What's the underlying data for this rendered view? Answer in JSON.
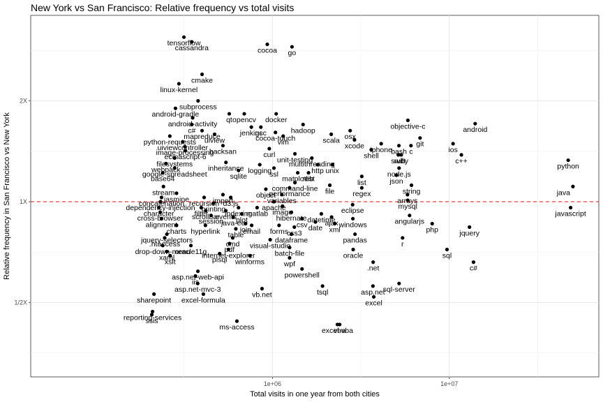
{
  "chart_data": {
    "type": "scatter",
    "title": "New York vs San Francisco: Relative frequency vs total visits",
    "xlabel": "Total visits in one year from both cities",
    "ylabel": "Relative frequency in San Francisco vs New York",
    "x_scale": "log10",
    "y_scale": "log2",
    "xlim": [
      43000,
      70000000
    ],
    "ylim": [
      0.3,
      3.6
    ],
    "x_ticks": [
      {
        "value": 1000000,
        "label": "1e+06"
      },
      {
        "value": 10000000,
        "label": "1e+07"
      }
    ],
    "y_ticks": [
      {
        "value": 0.5,
        "label": "1/2X"
      },
      {
        "value": 1,
        "label": "1X"
      },
      {
        "value": 2,
        "label": "2X"
      }
    ],
    "reference_line": {
      "y": 1,
      "color": "#e8413c",
      "style": "dashed"
    },
    "grid": true,
    "point_color": "#000000",
    "labeled_points": [
      {
        "label": "tensorflow",
        "x": 316000,
        "y": 3.1
      },
      {
        "label": "cassandra",
        "x": 350000,
        "y": 3.0
      },
      {
        "label": "cocoa",
        "x": 935000,
        "y": 2.95
      },
      {
        "label": "go",
        "x": 1290000,
        "y": 2.9
      },
      {
        "label": "cmake",
        "x": 400000,
        "y": 2.4
      },
      {
        "label": "linux-kernel",
        "x": 296000,
        "y": 2.25
      },
      {
        "label": "subprocess",
        "x": 380000,
        "y": 2.0
      },
      {
        "label": "android-gradle",
        "x": 283000,
        "y": 1.9
      },
      {
        "label": "qt",
        "x": 570000,
        "y": 1.83
      },
      {
        "label": "opencv",
        "x": 693000,
        "y": 1.83
      },
      {
        "label": "docker",
        "x": 1050000,
        "y": 1.83
      },
      {
        "label": "android-activity",
        "x": 354000,
        "y": 1.78
      },
      {
        "label": "hadoop",
        "x": 1490000,
        "y": 1.7
      },
      {
        "label": "objective-c",
        "x": 5830000,
        "y": 1.75
      },
      {
        "label": "android",
        "x": 14000000,
        "y": 1.71
      },
      {
        "label": "c#",
        "x": 350000,
        "y": 1.7
      },
      {
        "label": "jenkins",
        "x": 760000,
        "y": 1.67
      },
      {
        "label": "gcc",
        "x": 860000,
        "y": 1.67
      },
      {
        "label": "mapreduce",
        "x": 400000,
        "y": 1.63
      },
      {
        "label": "osx",
        "x": 2750000,
        "y": 1.63
      },
      {
        "label": "cocoa-touch",
        "x": 1040000,
        "y": 1.61
      },
      {
        "label": "uiview",
        "x": 471000,
        "y": 1.59
      },
      {
        "label": "scala",
        "x": 2150000,
        "y": 1.59
      },
      {
        "label": "vim",
        "x": 1150000,
        "y": 1.57
      },
      {
        "label": "python-requests",
        "x": 263000,
        "y": 1.57
      },
      {
        "label": "xcode",
        "x": 2910000,
        "y": 1.53
      },
      {
        "label": "git",
        "x": 6830000,
        "y": 1.55
      },
      {
        "label": "uiviewcontroller",
        "x": 311000,
        "y": 1.51
      },
      {
        "label": "iphone",
        "x": 4120000,
        "y": 1.49
      },
      {
        "label": "ios",
        "x": 10500000,
        "y": 1.49
      },
      {
        "label": "backsan",
        "x": 525000,
        "y": 1.47
      },
      {
        "label": "bash",
        "x": 5190000,
        "y": 1.47
      },
      {
        "label": "c",
        "x": 6070000,
        "y": 1.47
      },
      {
        "label": "image-processing",
        "x": 320000,
        "y": 1.46
      },
      {
        "label": "curl",
        "x": 960000,
        "y": 1.44
      },
      {
        "label": "shell",
        "x": 3620000,
        "y": 1.43
      },
      {
        "label": "c++",
        "x": 11700000,
        "y": 1.38
      },
      {
        "label": "ecmascript-6",
        "x": 322000,
        "y": 1.42
      },
      {
        "label": "unit-testing",
        "x": 1340000,
        "y": 1.39
      },
      {
        "label": "swift",
        "x": 5150000,
        "y": 1.38
      },
      {
        "label": "ruby",
        "x": 5350000,
        "y": 1.38
      },
      {
        "label": "multithreading",
        "x": 1670000,
        "y": 1.35
      },
      {
        "label": "filesystems",
        "x": 280000,
        "y": 1.35
      },
      {
        "label": "python",
        "x": 47000000,
        "y": 1.33
      },
      {
        "label": "inheritance",
        "x": 546000,
        "y": 1.31
      },
      {
        "label": "logging",
        "x": 848000,
        "y": 1.29
      },
      {
        "label": "http",
        "x": 1800000,
        "y": 1.29
      },
      {
        "label": "unix",
        "x": 2180000,
        "y": 1.29
      },
      {
        "label": "node.js",
        "x": 5200000,
        "y": 1.26
      },
      {
        "label": "webpack",
        "x": 250000,
        "y": 1.3
      },
      {
        "label": "ssl",
        "x": 1020000,
        "y": 1.26
      },
      {
        "label": "google-spreadsheet",
        "x": 280000,
        "y": 1.26
      },
      {
        "label": "sqlite",
        "x": 643000,
        "y": 1.24
      },
      {
        "label": "matplotlib",
        "x": 1390000,
        "y": 1.22
      },
      {
        "label": "rest",
        "x": 1600000,
        "y": 1.22
      },
      {
        "label": "list",
        "x": 3200000,
        "y": 1.19
      },
      {
        "label": "json",
        "x": 5020000,
        "y": 1.2
      },
      {
        "label": "base64",
        "x": 240000,
        "y": 1.22
      },
      {
        "label": "command-line",
        "x": 1340000,
        "y": 1.14
      },
      {
        "label": "file",
        "x": 2110000,
        "y": 1.12
      },
      {
        "label": "string",
        "x": 6110000,
        "y": 1.12
      },
      {
        "label": "regex",
        "x": 3200000,
        "y": 1.1
      },
      {
        "label": "stream",
        "x": 242000,
        "y": 1.11
      },
      {
        "label": "java",
        "x": 50000000,
        "y": 1.11
      },
      {
        "label": "performance",
        "x": 1250000,
        "y": 1.1
      },
      {
        "label": "object",
        "x": 918000,
        "y": 1.09
      },
      {
        "label": "jasmine",
        "x": 287000,
        "y": 1.06
      },
      {
        "label": "variables",
        "x": 1130000,
        "y": 1.05
      },
      {
        "label": "import",
        "x": 525000,
        "y": 1.05
      },
      {
        "label": "arrays",
        "x": 5800000,
        "y": 1.05
      },
      {
        "label": "d3.js",
        "x": 581000,
        "y": 1.03
      },
      {
        "label": "concatenation",
        "x": 236000,
        "y": 1.03
      },
      {
        "label": "recursion",
        "x": 411000,
        "y": 1.03
      },
      {
        "label": "mysql",
        "x": 5820000,
        "y": 1.01
      },
      {
        "label": "apache",
        "x": 1020000,
        "y": 1.0
      },
      {
        "label": "dependency-injection",
        "x": 233000,
        "y": 1.0
      },
      {
        "label": "printing",
        "x": 464000,
        "y": 0.99
      },
      {
        "label": "eclipse",
        "x": 2840000,
        "y": 0.98
      },
      {
        "label": "javascript",
        "x": 48500000,
        "y": 0.96
      },
      {
        "label": "image",
        "x": 1140000,
        "y": 0.97
      },
      {
        "label": "matlab",
        "x": 819000,
        "y": 0.96
      },
      {
        "label": "character",
        "x": 228000,
        "y": 0.96
      },
      {
        "label": "indexing",
        "x": 643000,
        "y": 0.96
      },
      {
        "label": "filter",
        "x": 396000,
        "y": 0.96
      },
      {
        "label": "events",
        "x": 545000,
        "y": 0.94
      },
      {
        "label": "scrollbar",
        "x": 420000,
        "y": 0.94
      },
      {
        "label": "cross-browser",
        "x": 232000,
        "y": 0.93
      },
      {
        "label": "hibernate",
        "x": 1280000,
        "y": 0.93
      },
      {
        "label": "plot",
        "x": 671000,
        "y": 0.92
      },
      {
        "label": "datetime",
        "x": 1890000,
        "y": 0.92
      },
      {
        "label": "angularjs",
        "x": 5960000,
        "y": 0.91
      },
      {
        "label": "session",
        "x": 450000,
        "y": 0.91
      },
      {
        "label": "ajax",
        "x": 2160000,
        "y": 0.9
      },
      {
        "label": "java-ee",
        "x": 600000,
        "y": 0.9
      },
      {
        "label": "csv",
        "x": 1470000,
        "y": 0.89
      },
      {
        "label": "alignment",
        "x": 236000,
        "y": 0.89
      },
      {
        "label": "windows",
        "x": 2850000,
        "y": 0.89
      },
      {
        "label": "date",
        "x": 1750000,
        "y": 0.87
      },
      {
        "label": "xml",
        "x": 2250000,
        "y": 0.86
      },
      {
        "label": "php",
        "x": 8000000,
        "y": 0.86
      },
      {
        "label": "join",
        "x": 705000,
        "y": 0.86
      },
      {
        "label": "email",
        "x": 763000,
        "y": 0.85
      },
      {
        "label": "forms",
        "x": 1090000,
        "y": 0.85
      },
      {
        "label": "jquery",
        "x": 13000000,
        "y": 0.84
      },
      {
        "label": "hyperlink",
        "x": 418000,
        "y": 0.85
      },
      {
        "label": "css3",
        "x": 1330000,
        "y": 0.84
      },
      {
        "label": "charts",
        "x": 287000,
        "y": 0.85
      },
      {
        "label": "table",
        "x": 621000,
        "y": 0.83
      },
      {
        "label": "dataframe",
        "x": 1280000,
        "y": 0.8
      },
      {
        "label": "pandas",
        "x": 2930000,
        "y": 0.8
      },
      {
        "label": "jquery-selectors",
        "x": 253000,
        "y": 0.8
      },
      {
        "label": "r",
        "x": 5440000,
        "y": 0.78
      },
      {
        "label": "cmd",
        "x": 596000,
        "y": 0.78
      },
      {
        "label": ".htaccess",
        "x": 246000,
        "y": 0.78
      },
      {
        "label": "visual-studio",
        "x": 971000,
        "y": 0.77
      },
      {
        "label": "pdf",
        "x": 572000,
        "y": 0.75
      },
      {
        "label": "drop-down-menu",
        "x": 240000,
        "y": 0.74
      },
      {
        "label": "oracle11g",
        "x": 346000,
        "y": 0.74
      },
      {
        "label": "internet-explorer",
        "x": 564000,
        "y": 0.72
      },
      {
        "label": "batch-file",
        "x": 1250000,
        "y": 0.73
      },
      {
        "label": "oracle",
        "x": 2860000,
        "y": 0.72
      },
      {
        "label": "sql",
        "x": 9700000,
        "y": 0.72
      },
      {
        "label": "xaml",
        "x": 253000,
        "y": 0.71
      },
      {
        "label": "plsql",
        "x": 503000,
        "y": 0.7
      },
      {
        "label": "winforms",
        "x": 745000,
        "y": 0.69
      },
      {
        "label": "wpf",
        "x": 1250000,
        "y": 0.68
      },
      {
        "label": "xslt",
        "x": 264000,
        "y": 0.69
      },
      {
        "label": ".net",
        "x": 3710000,
        "y": 0.66
      },
      {
        "label": "c#",
        "x": 13700000,
        "y": 0.66
      },
      {
        "label": "powershell",
        "x": 1470000,
        "y": 0.63
      },
      {
        "label": "asp.net-web-api",
        "x": 379000,
        "y": 0.62
      },
      {
        "label": "iis",
        "x": 367000,
        "y": 0.6
      },
      {
        "label": "asp.net-mvc-3",
        "x": 378000,
        "y": 0.57
      },
      {
        "label": "sql-server",
        "x": 5200000,
        "y": 0.57
      },
      {
        "label": "asp.net",
        "x": 3700000,
        "y": 0.56
      },
      {
        "label": "tsql",
        "x": 1920000,
        "y": 0.56
      },
      {
        "label": "vb.net",
        "x": 873000,
        "y": 0.55
      },
      {
        "label": "excel-formula",
        "x": 407000,
        "y": 0.53
      },
      {
        "label": "sharepoint",
        "x": 214000,
        "y": 0.53
      },
      {
        "label": "excel",
        "x": 3740000,
        "y": 0.52
      },
      {
        "label": "reporting-services",
        "x": 210000,
        "y": 0.47
      },
      {
        "label": "ssis",
        "x": 208000,
        "y": 0.46
      },
      {
        "label": "ms-access",
        "x": 630000,
        "y": 0.44
      },
      {
        "label": "excel-vba",
        "x": 2330000,
        "y": 0.43
      },
      {
        "label": "vba",
        "x": 2400000,
        "y": 0.43
      }
    ]
  }
}
